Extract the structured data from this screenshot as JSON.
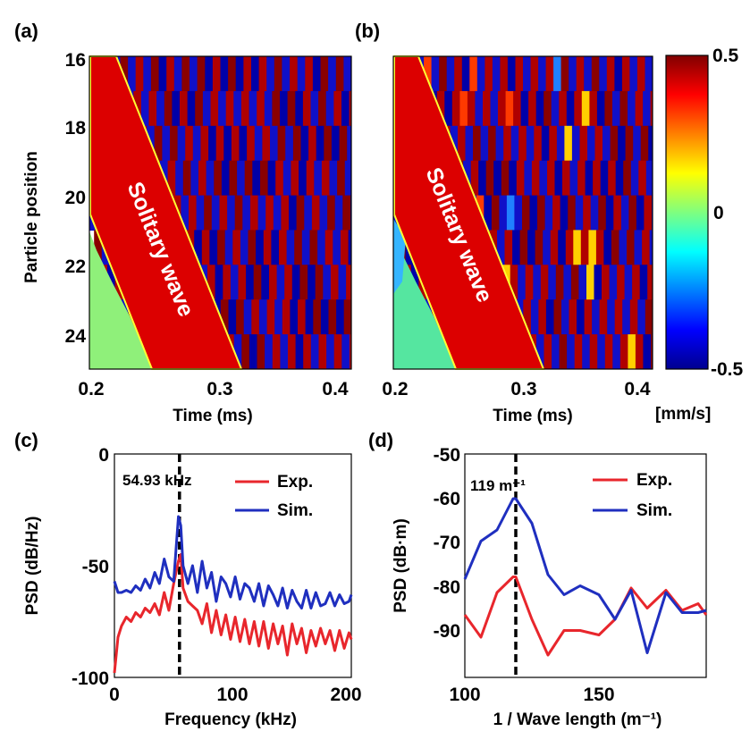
{
  "panel_labels": [
    "(a)",
    "(b)",
    "(c)",
    "(d)"
  ],
  "chart_data": [
    {
      "id": "a",
      "type": "heatmap",
      "title": "",
      "xlabel": "Time (ms)",
      "ylabel": "Particle position",
      "xlim": [
        0.2,
        0.4
      ],
      "ylim": [
        16,
        25
      ],
      "x_ticks": [
        0.2,
        0.3,
        0.4
      ],
      "x_tick_labels": [
        "0.2",
        "0.3",
        "0.4"
      ],
      "y_ticks": [
        16,
        18,
        20,
        22,
        24
      ],
      "y_tick_labels": [
        "16",
        "18",
        "20",
        "22",
        "24"
      ],
      "annotation": "Solitary wave",
      "value_units": "mm/s"
    },
    {
      "id": "b",
      "type": "heatmap",
      "title": "",
      "xlabel": "Time (ms)",
      "ylabel": "",
      "xlim": [
        0.2,
        0.4
      ],
      "ylim": [
        16,
        25
      ],
      "x_ticks": [
        0.2,
        0.3,
        0.4
      ],
      "x_tick_labels": [
        "0.2",
        "0.3",
        "0.4"
      ],
      "annotation": "Solitary wave",
      "colorbar": {
        "range": [
          -0.5,
          0.5
        ],
        "ticks": [
          0.5,
          0,
          -0.5
        ],
        "tick_labels": [
          "0.5",
          "0",
          "-0.5"
        ],
        "label": "[mm/s]"
      }
    },
    {
      "id": "c",
      "type": "line",
      "title": "",
      "xlabel": "Frequency (kHz)",
      "ylabel": "PSD (dB/Hz)",
      "xlim": [
        0,
        200
      ],
      "ylim": [
        -100,
        0
      ],
      "x_ticks": [
        0,
        100,
        200
      ],
      "x_tick_labels": [
        "0",
        "100",
        "200"
      ],
      "y_ticks": [
        0,
        -50,
        -100
      ],
      "y_tick_labels": [
        "0",
        "-50",
        "-100"
      ],
      "vline": {
        "x": 54.93,
        "label": "54.93 kHz"
      },
      "legend": {
        "position": "top-right"
      },
      "series": [
        {
          "name": "Exp.",
          "color": "#e8262c",
          "x": [
            0,
            3,
            6,
            10,
            14,
            18,
            22,
            26,
            30,
            34,
            38,
            42,
            46,
            50,
            54,
            56,
            58,
            62,
            66,
            70,
            74,
            78,
            82,
            86,
            90,
            94,
            98,
            102,
            106,
            110,
            114,
            118,
            122,
            126,
            130,
            134,
            138,
            142,
            146,
            150,
            154,
            158,
            162,
            166,
            170,
            174,
            178,
            182,
            186,
            190,
            194,
            198,
            200
          ],
          "y": [
            -98,
            -82,
            -77,
            -73,
            -75,
            -71,
            -73,
            -69,
            -71,
            -67,
            -72,
            -62,
            -70,
            -58,
            -48,
            -45,
            -60,
            -66,
            -68,
            -70,
            -76,
            -67,
            -80,
            -70,
            -81,
            -72,
            -83,
            -73,
            -84,
            -74,
            -85,
            -75,
            -86,
            -75,
            -87,
            -76,
            -85,
            -77,
            -90,
            -76,
            -85,
            -78,
            -89,
            -79,
            -86,
            -78,
            -85,
            -79,
            -88,
            -79,
            -87,
            -80,
            -83
          ]
        },
        {
          "name": "Sim.",
          "color": "#1f2fbf",
          "x": [
            0,
            3,
            6,
            10,
            14,
            18,
            22,
            26,
            30,
            34,
            38,
            42,
            46,
            50,
            54,
            56,
            58,
            62,
            66,
            70,
            74,
            78,
            82,
            86,
            90,
            94,
            98,
            102,
            106,
            110,
            114,
            118,
            122,
            126,
            130,
            134,
            138,
            142,
            146,
            150,
            154,
            158,
            162,
            166,
            170,
            174,
            178,
            182,
            186,
            190,
            194,
            198,
            200
          ],
          "y": [
            -57,
            -62,
            -62,
            -61,
            -62,
            -59,
            -61,
            -56,
            -60,
            -53,
            -58,
            -47,
            -55,
            -57,
            -28,
            -32,
            -50,
            -58,
            -50,
            -62,
            -48,
            -60,
            -53,
            -66,
            -55,
            -58,
            -64,
            -55,
            -65,
            -58,
            -60,
            -66,
            -58,
            -68,
            -59,
            -63,
            -68,
            -60,
            -69,
            -61,
            -66,
            -69,
            -61,
            -69,
            -62,
            -68,
            -67,
            -62,
            -68,
            -63,
            -67,
            -66,
            -63
          ]
        }
      ]
    },
    {
      "id": "d",
      "type": "line",
      "title": "",
      "xlabel": "1 / Wave length (m⁻¹)",
      "ylabel": "PSD (dB·m)",
      "xlim": [
        100,
        190
      ],
      "ylim": [
        -100,
        -50
      ],
      "x_ticks": [
        100,
        150
      ],
      "x_tick_labels": [
        "100",
        "150"
      ],
      "y_ticks": [
        -50,
        -60,
        -70,
        -80,
        -90
      ],
      "y_tick_labels": [
        "-50",
        "-60",
        "-70",
        "-80",
        "-90"
      ],
      "vline": {
        "x": 119,
        "label": "119 m⁻¹"
      },
      "legend": {
        "position": "top-right"
      },
      "series": [
        {
          "name": "Exp.",
          "color": "#e8262c",
          "x": [
            100,
            106,
            112,
            118,
            119,
            125,
            131,
            137,
            143,
            150,
            156,
            162,
            168,
            175,
            181,
            187,
            190
          ],
          "y": [
            -86,
            -91,
            -81,
            -77.5,
            -77.5,
            -87,
            -95,
            -89.5,
            -89.5,
            -90.5,
            -87,
            -80,
            -84.5,
            -80.5,
            -85,
            -83.5,
            -86
          ]
        },
        {
          "name": "Sim.",
          "color": "#1f2fbf",
          "x": [
            100,
            106,
            112,
            118,
            119,
            125,
            131,
            137,
            143,
            150,
            156,
            162,
            168,
            175,
            181,
            187,
            190
          ],
          "y": [
            -78,
            -69.5,
            -67,
            -60,
            -60,
            -65.5,
            -77,
            -81.5,
            -79.5,
            -81.5,
            -87,
            -80.5,
            -94.5,
            -81,
            -85.5,
            -85.5,
            -85
          ]
        }
      ]
    }
  ]
}
